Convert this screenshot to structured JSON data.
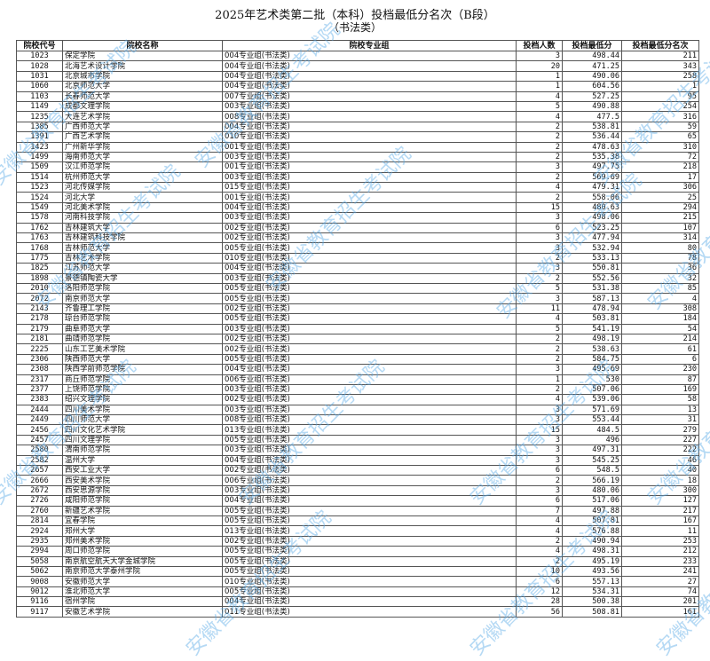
{
  "title": "2025年艺术类第二批（本科）投档最低分名次（B段）",
  "subtitle": "（书法类）",
  "watermark": "安徽省教育招生考试院",
  "watermark_color": "#5aaae6",
  "headers": [
    "院校代号",
    "院校名称",
    "院校专业组",
    "投档人数",
    "投档最低分",
    "投档最低分名次"
  ],
  "rows": [
    [
      "1023",
      "保定学院",
      "004专业组(书法类)",
      "3",
      "498.44",
      "211"
    ],
    [
      "1028",
      "北海艺术设计学院",
      "004专业组(书法类)",
      "20",
      "471.25",
      "343"
    ],
    [
      "1031",
      "北京城市学院",
      "004专业组(书法类)",
      "1",
      "490.06",
      "258"
    ],
    [
      "1060",
      "北京师范大学",
      "004专业组(书法类)",
      "1",
      "604.56",
      "1"
    ],
    [
      "1103",
      "长春师范大学",
      "007专业组(书法类)",
      "4",
      "527.25",
      "95"
    ],
    [
      "1149",
      "成都文理学院",
      "003专业组(书法类)",
      "5",
      "490.88",
      "254"
    ],
    [
      "1235",
      "大连艺术学院",
      "008专业组(书法类)",
      "4",
      "477.5",
      "316"
    ],
    [
      "1385",
      "广西师范大学",
      "004专业组(书法类)",
      "2",
      "538.81",
      "59"
    ],
    [
      "1391",
      "广西艺术学院",
      "010专业组(书法类)",
      "2",
      "536.44",
      "65"
    ],
    [
      "1423",
      "广州新华学院",
      "001专业组(书法类)",
      "2",
      "478.63",
      "310"
    ],
    [
      "1499",
      "海南师范大学",
      "003专业组(书法类)",
      "2",
      "535.38",
      "72"
    ],
    [
      "1509",
      "汉江师范学院",
      "001专业组(书法类)",
      "3",
      "497.75",
      "218"
    ],
    [
      "1514",
      "杭州师范大学",
      "003专业组(书法类)",
      "2",
      "569.69",
      "17"
    ],
    [
      "1523",
      "河北传媒学院",
      "015专业组(书法类)",
      "4",
      "479.31",
      "306"
    ],
    [
      "1524",
      "河北大学",
      "001专业组(书法类)",
      "2",
      "558.06",
      "25"
    ],
    [
      "1549",
      "河北美术学院",
      "004专业组(书法类)",
      "15",
      "480.63",
      "294"
    ],
    [
      "1578",
      "河南科技学院",
      "003专业组(书法类)",
      "3",
      "498.06",
      "215"
    ],
    [
      "1762",
      "吉林建筑大学",
      "002专业组(书法类)",
      "6",
      "523.25",
      "107"
    ],
    [
      "1763",
      "吉林建筑科技学院",
      "002专业组(书法类)",
      "3",
      "477.94",
      "314"
    ],
    [
      "1768",
      "吉林师范大学",
      "005专业组(书法类)",
      "3",
      "532.94",
      "80"
    ],
    [
      "1775",
      "吉林艺术学院",
      "010专业组(书法类)",
      "2",
      "533.13",
      "78"
    ],
    [
      "1825",
      "江苏师范大学",
      "004专业组(书法类)",
      "3",
      "550.81",
      "36"
    ],
    [
      "1898",
      "景德镇陶瓷大学",
      "003专业组(书法类)",
      "2",
      "552.56",
      "32"
    ],
    [
      "2010",
      "洛阳师范学院",
      "005专业组(书法类)",
      "5",
      "531.38",
      "85"
    ],
    [
      "2072",
      "南京师范大学",
      "005专业组(书法类)",
      "3",
      "587.13",
      "4"
    ],
    [
      "2143",
      "齐鲁理工学院",
      "002专业组(书法类)",
      "11",
      "478.94",
      "308"
    ],
    [
      "2178",
      "琼台师范学院",
      "005专业组(书法类)",
      "4",
      "503.81",
      "184"
    ],
    [
      "2179",
      "曲阜师范大学",
      "003专业组(书法类)",
      "5",
      "541.19",
      "54"
    ],
    [
      "2181",
      "曲靖师范学院",
      "002专业组(书法类)",
      "2",
      "498.19",
      "214"
    ],
    [
      "2225",
      "山东工艺美术学院",
      "002专业组(书法类)",
      "2",
      "538.63",
      "61"
    ],
    [
      "2306",
      "陕西师范大学",
      "005专业组(书法类)",
      "2",
      "584.75",
      "6"
    ],
    [
      "2308",
      "陕西学前师范学院",
      "004专业组(书法类)",
      "3",
      "495.69",
      "230"
    ],
    [
      "2317",
      "商丘师范学院",
      "006专业组(书法类)",
      "1",
      "530",
      "87"
    ],
    [
      "2377",
      "上饶师范学院",
      "003专业组(书法类)",
      "2",
      "507.06",
      "169"
    ],
    [
      "2383",
      "绍兴文理学院",
      "002专业组(书法类)",
      "4",
      "539.06",
      "58"
    ],
    [
      "2444",
      "四川美术学院",
      "003专业组(书法类)",
      "3",
      "571.69",
      "13"
    ],
    [
      "2449",
      "四川师范大学",
      "008专业组(书法类)",
      "3",
      "553.44",
      "31"
    ],
    [
      "2456",
      "四川文化艺术学院",
      "013专业组(书法类)",
      "15",
      "484.5",
      "279"
    ],
    [
      "2457",
      "四川文理学院",
      "005专业组(书法类)",
      "3",
      "496",
      "227"
    ],
    [
      "2580",
      "渭南师范学院",
      "003专业组(书法类)",
      "3",
      "497.31",
      "222"
    ],
    [
      "2582",
      "温州大学",
      "004专业组(书法类)",
      "3",
      "545.25",
      "46"
    ],
    [
      "2657",
      "西安工业大学",
      "002专业组(书法类)",
      "6",
      "548.5",
      "40"
    ],
    [
      "2666",
      "西安美术学院",
      "006专业组(书法类)",
      "2",
      "566.19",
      "18"
    ],
    [
      "2672",
      "西安思源学院",
      "003专业组(书法类)",
      "3",
      "480.06",
      "300"
    ],
    [
      "2726",
      "咸阳师范学院",
      "004专业组(书法类)",
      "6",
      "517.06",
      "127"
    ],
    [
      "2760",
      "新疆艺术学院",
      "005专业组(书法类)",
      "7",
      "497.88",
      "217"
    ],
    [
      "2814",
      "宜春学院",
      "005专业组(书法类)",
      "4",
      "507.81",
      "167"
    ],
    [
      "2924",
      "郑州大学",
      "013专业组(书法类)",
      "4",
      "576.88",
      "11"
    ],
    [
      "2935",
      "郑州美术学院",
      "002专业组(书法类)",
      "2",
      "490.94",
      "253"
    ],
    [
      "2994",
      "周口师范学院",
      "005专业组(书法类)",
      "4",
      "498.31",
      "212"
    ],
    [
      "5058",
      "南京航空航天大学金城学院",
      "005专业组(书法类)",
      "2",
      "495.19",
      "233"
    ],
    [
      "5062",
      "南京师范大学泰州学院",
      "005专业组(书法类)",
      "10",
      "493.56",
      "241"
    ],
    [
      "9008",
      "安徽师范大学",
      "010专业组(书法类)",
      "6",
      "557.13",
      "27"
    ],
    [
      "9012",
      "淮北师范大学",
      "005专业组(书法类)",
      "12",
      "534.31",
      "74"
    ],
    [
      "9116",
      "宿州学院",
      "004专业组(书法类)",
      "28",
      "500.38",
      "201"
    ],
    [
      "9117",
      "安徽艺术学院",
      "011专业组(书法类)",
      "56",
      "508.81",
      "161"
    ]
  ]
}
